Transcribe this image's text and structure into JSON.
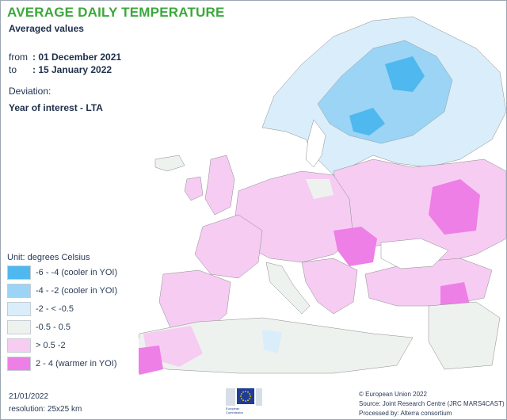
{
  "title": "AVERAGE DAILY TEMPERATURE",
  "subtitle": "Averaged values",
  "period": {
    "from_label": "from",
    "from_value": ": 01 December 2021",
    "to_label": "to",
    "to_value": ": 15 January 2022"
  },
  "deviation_label": "Deviation:",
  "deviation_value": "Year of interest - LTA",
  "legend": {
    "unit": "Unit: degrees Celsius",
    "items": [
      {
        "label": "-6 - -4 (cooler in YOI)",
        "color": "#4fb8ee"
      },
      {
        "label": "-4 - -2 (cooler in YOI)",
        "color": "#9bd4f5"
      },
      {
        "label": "-2 - < -0.5",
        "color": "#d9eefa"
      },
      {
        "label": "-0.5 - 0.5",
        "color": "#eef2ee"
      },
      {
        "label": "> 0.5 -2",
        "color": "#f6ccf3"
      },
      {
        "label": "2 - 4 (warmer in YOI)",
        "color": "#ee7fe6"
      }
    ]
  },
  "footer": {
    "date": "21/01/2022",
    "resolution": "resolution: 25x25 km",
    "copyright": "© European Union 2022",
    "source": "Source: Joint Research Centre (JRC MARS4CAST)",
    "processed": "Processed by: Alterra consortium"
  },
  "logo": {
    "line1": "European",
    "line2": "Commission",
    "flag_color": "#1f3c96",
    "star_color": "#f5d400"
  }
}
